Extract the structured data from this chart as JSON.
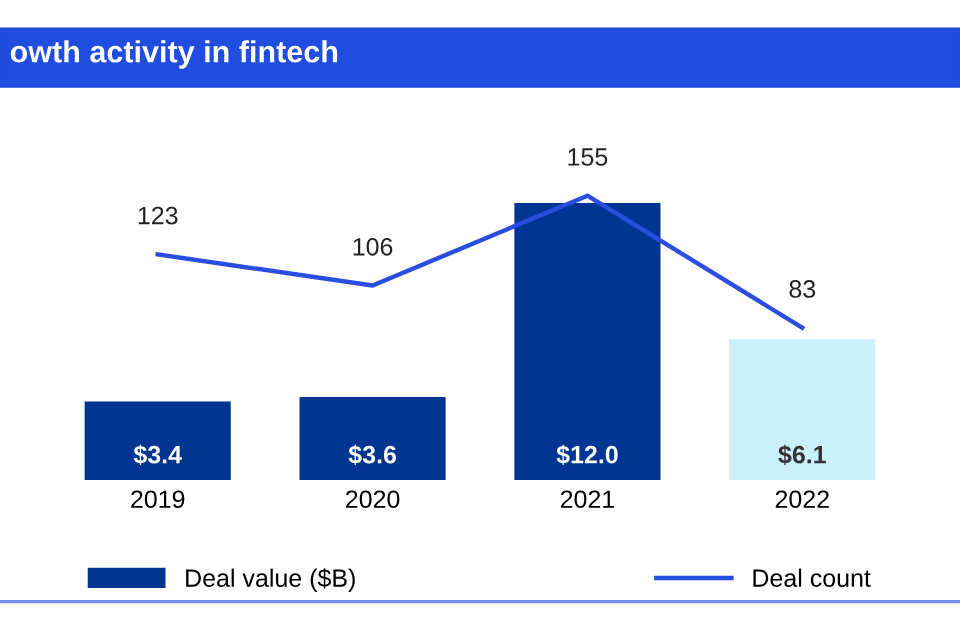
{
  "chart_data": {
    "type": "bar",
    "title": "owth activity in fintech",
    "categories": [
      "2019",
      "2020",
      "2021",
      "2022"
    ],
    "series": [
      {
        "name": "Deal value ($B)",
        "color": "#003591",
        "colors": [
          "#003591",
          "#003591",
          "#003591",
          "#c9f0fb"
        ],
        "values": [
          3.4,
          3.6,
          12.0,
          6.1
        ],
        "value_labels": [
          "$3.4",
          "$3.6",
          "$12.0",
          "$6.1"
        ]
      },
      {
        "name": "Deal count",
        "type": "line",
        "axis": "y2",
        "color": "#2a4ee0",
        "values": [
          123,
          106,
          155,
          83
        ]
      }
    ],
    "data_labels": true,
    "legend": "bottom",
    "grid": false,
    "marker": "none",
    "line_style": "solid"
  }
}
